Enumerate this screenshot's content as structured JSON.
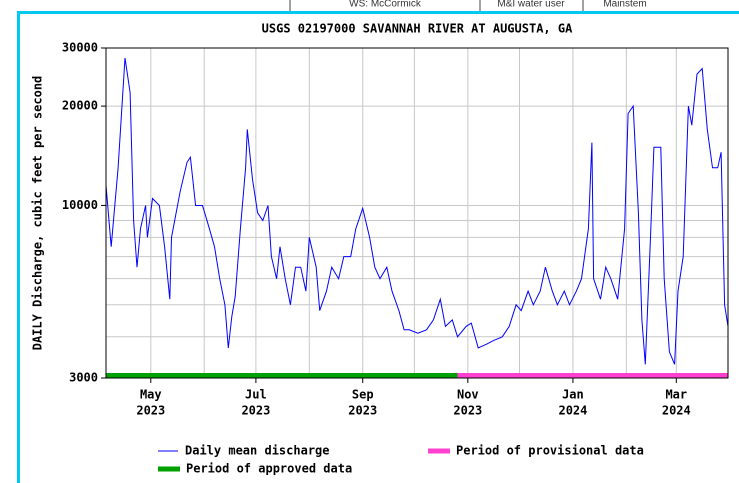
{
  "behind": {
    "cells": [
      "WS: McCormick",
      "M&I water user",
      "Mainstem"
    ]
  },
  "chart_data": {
    "type": "line",
    "title": "USGS 02197000 SAVANNAH RIVER AT AUGUSTA, GA",
    "y_label": "DAILY Discharge, cubic feet per second",
    "y_scale": "log",
    "ylim": [
      3000,
      30000
    ],
    "yticks": [
      3000,
      10000,
      20000,
      30000
    ],
    "minor_yticks": [
      4000,
      5000,
      6000,
      7000,
      8000,
      9000
    ],
    "xlim": [
      0,
      361
    ],
    "xticks": [
      {
        "value": 26,
        "label": [
          "May",
          "2023"
        ]
      },
      {
        "value": 87,
        "label": [
          "Jul",
          "2023"
        ]
      },
      {
        "value": 149,
        "label": [
          "Sep",
          "2023"
        ]
      },
      {
        "value": 210,
        "label": [
          "Nov",
          "2023"
        ]
      },
      {
        "value": 271,
        "label": [
          "Jan",
          "2024"
        ]
      },
      {
        "value": 331,
        "label": [
          "Mar",
          "2024"
        ]
      }
    ],
    "minor_xticks": [
      57,
      118,
      179,
      240,
      302
    ],
    "grid": true,
    "series": [
      {
        "name": "Daily mean discharge",
        "color": "#0000ff",
        "x": [
          0,
          3,
          7,
          11,
          14,
          16,
          18,
          20,
          23,
          24,
          27,
          31,
          34,
          37,
          38,
          43,
          47,
          49,
          52,
          56,
          60,
          63,
          66,
          69,
          71,
          73,
          75,
          78,
          81,
          82,
          85,
          88,
          91,
          94,
          96,
          99,
          101,
          104,
          107,
          110,
          113,
          116,
          118,
          122,
          124,
          128,
          131,
          135,
          138,
          142,
          145,
          149,
          153,
          156,
          159,
          163,
          166,
          170,
          173,
          176,
          181,
          186,
          190,
          194,
          197,
          201,
          204,
          209,
          212,
          216,
          221,
          225,
          230,
          234,
          238,
          241,
          245,
          248,
          252,
          255,
          259,
          262,
          266,
          269,
          273,
          276,
          280,
          282,
          283,
          287,
          290,
          293,
          297,
          301,
          303,
          306,
          309,
          311,
          313,
          316,
          318,
          322,
          324,
          327,
          330,
          332,
          335,
          338,
          340,
          343,
          346,
          349,
          352,
          355,
          357,
          359,
          361
        ],
        "values": [
          11500,
          7500,
          13000,
          28000,
          22000,
          9000,
          6500,
          8500,
          10000,
          8000,
          10500,
          10000,
          7500,
          5200,
          8000,
          11000,
          13500,
          14000,
          10000,
          10000,
          8500,
          7500,
          6000,
          5000,
          3700,
          4600,
          5300,
          8500,
          13000,
          17000,
          12000,
          9500,
          9000,
          10000,
          7000,
          6000,
          7500,
          6000,
          5000,
          6500,
          6500,
          5500,
          8000,
          6500,
          4800,
          5500,
          6500,
          6000,
          7000,
          7000,
          8500,
          9800,
          8000,
          6500,
          6000,
          6500,
          5500,
          4800,
          4200,
          4200,
          4100,
          4200,
          4500,
          5200,
          4300,
          4500,
          4000,
          4300,
          4400,
          3700,
          3800,
          3900,
          4000,
          4300,
          5000,
          4800,
          5500,
          5000,
          5500,
          6500,
          5500,
          5000,
          5500,
          5000,
          5500,
          6000,
          8500,
          15500,
          6000,
          5200,
          6500,
          6000,
          5200,
          8500,
          19000,
          20000,
          9500,
          4500,
          3300,
          8000,
          15000,
          15000,
          6000,
          3600,
          3300,
          5500,
          7000,
          20000,
          17500,
          25000,
          26000,
          17000,
          13000,
          13000,
          14500,
          5000,
          4300
        ]
      }
    ],
    "periods": [
      {
        "name": "Period of approved data",
        "color": "#00a000",
        "start": 0,
        "end": 204
      },
      {
        "name": "Period of provisional data",
        "color": "#ff40d0",
        "start": 204,
        "end": 361
      }
    ]
  }
}
